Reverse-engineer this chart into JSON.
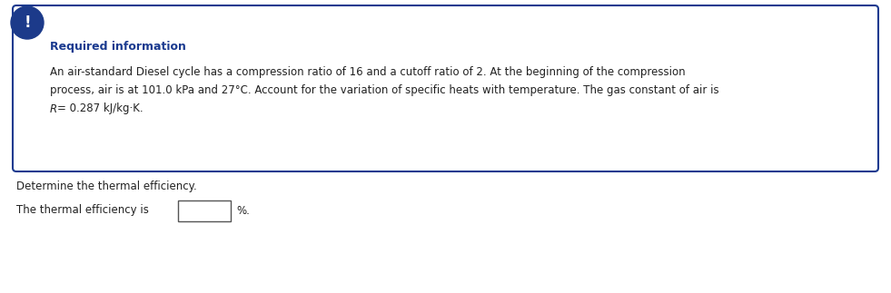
{
  "required_info_title": "Required information",
  "required_info_title_color": "#1a3a8f",
  "body_text_line1": "An air-standard Diesel cycle has a compression ratio of 16 and a cutoff ratio of 2. At the beginning of the compression",
  "body_text_line2": "process, air is at 101.0 kPa and 27°C. Account for the variation of specific heats with temperature. The gas constant of air is",
  "body_text_line3_italic": "R",
  "body_text_line3_rest": "= 0.287 kJ/kg·K.",
  "question_text": "Determine the thermal efficiency.",
  "answer_label": "The thermal efficiency is",
  "answer_unit": "%.",
  "box_border_color": "#1a3a8f",
  "icon_bg_color": "#1c3a8a",
  "icon_text": "!",
  "icon_text_color": "#ffffff",
  "bg_color": "#ffffff",
  "body_text_color": "#222222",
  "box_fill_color": "#ffffff",
  "fig_width": 9.81,
  "fig_height": 3.23,
  "dpi": 100
}
